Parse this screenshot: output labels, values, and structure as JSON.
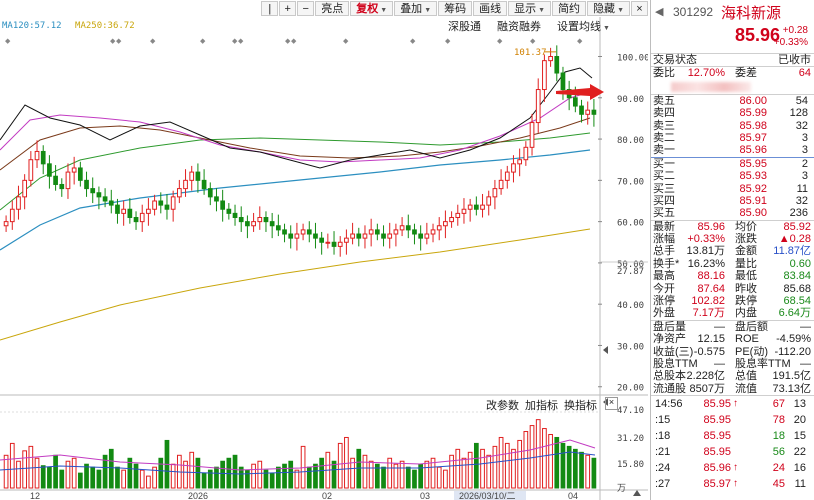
{
  "toolbar": {
    "items": [
      {
        "label": "|",
        "icon": true
      },
      {
        "label": "+",
        "icon": true
      },
      {
        "label": "−",
        "icon": true
      },
      {
        "label": "亮点"
      },
      {
        "label": "复权",
        "active": true,
        "caret": true
      },
      {
        "label": "叠加",
        "caret": true
      },
      {
        "label": "筹码"
      },
      {
        "label": "画线"
      },
      {
        "label": "显示",
        "caret": true
      },
      {
        "label": "简约"
      },
      {
        "label": "隐藏",
        "caret": true
      },
      {
        "label": "×",
        "icon": true
      }
    ],
    "row2": [
      "深股通",
      "融资融券",
      "设置均线"
    ]
  },
  "ma_legend": [
    {
      "label": "MA120:57.12",
      "color": "#2c8fc0"
    },
    {
      "label": "MA250:36.72",
      "color": "#c9a60c"
    }
  ],
  "chart": {
    "price_axis_labels": [
      "100.00",
      "90.00",
      "80.00",
      "70.00",
      "60.00",
      "50.00",
      "40.00",
      "30.00",
      "20.00"
    ],
    "current_price_label": "27.87",
    "high_annotation": "101.37",
    "vol_axis_labels": [
      "47.10",
      "31.20",
      "15.80",
      "万"
    ],
    "x_labels": [
      "12",
      "2026",
      "02",
      "03",
      "2026/03/10/二",
      "04"
    ],
    "vol_header": [
      "改参数",
      "加指标",
      "换指标"
    ],
    "vol_close": "×"
  },
  "chart_data": {
    "type": "candlestick",
    "title": "",
    "y_range": [
      18,
      104
    ],
    "close": [
      60,
      63,
      66,
      70,
      75,
      77,
      74,
      71,
      69,
      68,
      72,
      73,
      70,
      68,
      67,
      66,
      65,
      64,
      62,
      63,
      61,
      60,
      62,
      63,
      65,
      64,
      63,
      66,
      68,
      70,
      72,
      70,
      68,
      66,
      65,
      63,
      62,
      61,
      60,
      59,
      60,
      61,
      60,
      59,
      58,
      57,
      56,
      57,
      58,
      57,
      56,
      55,
      55,
      54,
      55,
      56,
      57,
      56,
      57,
      58,
      57,
      56,
      57,
      58,
      59,
      58,
      57,
      56,
      57,
      58,
      59,
      60,
      61,
      62,
      63,
      64,
      63,
      64,
      66,
      68,
      70,
      72,
      74,
      75,
      78,
      84,
      92,
      99,
      100,
      96,
      92,
      90,
      88,
      86,
      87,
      86
    ],
    "volume": [
      22,
      30,
      18,
      25,
      28,
      20,
      15,
      14,
      22,
      12,
      18,
      20,
      10,
      16,
      14,
      12,
      22,
      26,
      14,
      12,
      20,
      16,
      12,
      8,
      14,
      20,
      32,
      16,
      22,
      18,
      24,
      20,
      10,
      12,
      14,
      18,
      20,
      22,
      14,
      12,
      16,
      18,
      12,
      10,
      14,
      16,
      18,
      12,
      28,
      14,
      16,
      20,
      24,
      18,
      30,
      34,
      20,
      26,
      22,
      18,
      16,
      14,
      20,
      16,
      18,
      14,
      12,
      16,
      18,
      20,
      14,
      12,
      22,
      26,
      20,
      24,
      30,
      26,
      22,
      28,
      34,
      30,
      26,
      32,
      38,
      42,
      46,
      40,
      36,
      34,
      30,
      28,
      26,
      24,
      22,
      20
    ],
    "ma120_last": 57.12,
    "ma250_last": 36.72
  },
  "panel": {
    "code": "301292",
    "name": "海科新源",
    "price": "85.96",
    "change": "+0.28",
    "change_pct": "+0.33%",
    "status_label": "交易状态",
    "status_value": "已收市",
    "ratio_row": {
      "l1": "委比",
      "v1": "12.70%",
      "l2": "委差",
      "v2": "64"
    },
    "asks": [
      {
        "label": "卖五",
        "price": "86.00",
        "vol": "54"
      },
      {
        "label": "卖四",
        "price": "85.99",
        "vol": "128"
      },
      {
        "label": "卖三",
        "price": "85.98",
        "vol": "32"
      },
      {
        "label": "卖二",
        "price": "85.97",
        "vol": "3"
      },
      {
        "label": "卖一",
        "price": "85.96",
        "vol": "3"
      }
    ],
    "bids": [
      {
        "label": "买一",
        "price": "85.95",
        "vol": "2"
      },
      {
        "label": "买二",
        "price": "85.93",
        "vol": "3"
      },
      {
        "label": "买三",
        "price": "85.92",
        "vol": "11"
      },
      {
        "label": "买四",
        "price": "85.91",
        "vol": "32"
      },
      {
        "label": "买五",
        "price": "85.90",
        "vol": "236"
      }
    ],
    "stats": [
      {
        "l1": "最新",
        "v1": "85.96",
        "c1": "red",
        "l2": "均价",
        "v2": "85.92",
        "c2": "red"
      },
      {
        "l1": "涨幅",
        "v1": "+0.33%",
        "c1": "red",
        "l2": "涨跌",
        "v2": "▲0.28",
        "c2": "red"
      },
      {
        "l1": "总手",
        "v1": "13.81万",
        "c1": "",
        "l2": "金额",
        "v2": "11.87亿",
        "c2": "blue"
      },
      {
        "l1": "换手*",
        "v1": "16.23%",
        "c1": "",
        "l2": "量比",
        "v2": "0.60",
        "c2": "green"
      },
      {
        "l1": "最高",
        "v1": "88.16",
        "c1": "red",
        "l2": "最低",
        "v2": "83.84",
        "c2": "green"
      },
      {
        "l1": "今开",
        "v1": "87.64",
        "c1": "red",
        "l2": "昨收",
        "v2": "85.68",
        "c2": ""
      },
      {
        "l1": "涨停",
        "v1": "102.82",
        "c1": "red",
        "l2": "跌停",
        "v2": "68.54",
        "c2": "green"
      },
      {
        "l1": "外盘",
        "v1": "7.17万",
        "c1": "red",
        "l2": "内盘",
        "v2": "6.64万",
        "c2": "green"
      }
    ],
    "stats2": [
      {
        "l1": "盘后量",
        "v1": "—",
        "l2": "盘后额",
        "v2": "—"
      },
      {
        "l1": "净资产",
        "v1": "12.15",
        "l2": "ROE",
        "v2": "-4.59%"
      },
      {
        "l1": "收益(三)",
        "v1": "-0.575",
        "l2": "PE(动)",
        "v2": "-112.20"
      },
      {
        "l1": "股息TTM",
        "v1": "—",
        "l2": "股息率TTM",
        "v2": "—"
      },
      {
        "l1": "总股本",
        "v1": "2.228亿",
        "l2": "总值",
        "v2": "191.5亿"
      },
      {
        "l1": "流通股",
        "v1": "8507万",
        "l2": "流值",
        "v2": "73.13亿"
      }
    ],
    "ticks": [
      {
        "time": "14:56",
        "price": "85.95",
        "arrow": "↑",
        "vol": "67",
        "num": "13",
        "vc": "red"
      },
      {
        "time": ":15",
        "price": "85.95",
        "arrow": "",
        "vol": "78",
        "num": "20",
        "vc": "red"
      },
      {
        "time": ":18",
        "price": "85.95",
        "arrow": "",
        "vol": "18",
        "num": "15",
        "vc": "green"
      },
      {
        "time": ":21",
        "price": "85.95",
        "arrow": "",
        "vol": "56",
        "num": "22",
        "vc": "green"
      },
      {
        "time": ":24",
        "price": "85.96",
        "arrow": "↑",
        "vol": "24",
        "num": "16",
        "vc": "red"
      },
      {
        "time": ":27",
        "price": "85.97",
        "arrow": "↑",
        "vol": "45",
        "num": "11",
        "vc": "red"
      }
    ]
  }
}
